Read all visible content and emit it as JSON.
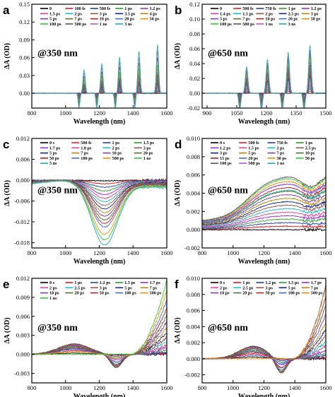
{
  "figure": {
    "ylabel": "ΔA (OD)",
    "xlabel": "Wavelength (nm)"
  },
  "chart_data": [
    {
      "type": "line",
      "panel": "a",
      "annotation": "@350 nm",
      "xlabel": "Wavelength (nm)",
      "ylabel": "ΔA (OD)",
      "xlim": [
        800,
        1600
      ],
      "ylim": [
        -0.025,
        0.15
      ],
      "xticks": [
        800,
        1000,
        1200,
        1400,
        1600
      ],
      "yticks": [
        0.15,
        0.12,
        0.09,
        0.06,
        0.03,
        0.0
      ],
      "ytick_labels": [
        "0.15",
        "0.12",
        "0.09",
        "0.06",
        "0.03",
        "0.00"
      ],
      "legend_placement": "top-right",
      "legend_cols": 5,
      "features": {
        "kind": "peaks",
        "peaks": [
          1110,
          1215,
          1320,
          1435,
          1545
        ],
        "dips": [
          1080,
          1185,
          1295,
          1410
        ]
      },
      "series": [
        {
          "name": "0",
          "color": "#000000",
          "amp": 0.0
        },
        {
          "name": "100 fs",
          "color": "#e41a1c",
          "amp": 0.002
        },
        {
          "name": "500 fs",
          "color": "#1f3fbf",
          "amp": 0.004
        },
        {
          "name": "1 ps",
          "color": "#2ca02c",
          "amp": 0.006
        },
        {
          "name": "1.2 ps",
          "color": "#9b30d9",
          "amp": 0.008
        },
        {
          "name": "1.5 ps",
          "color": "#e0409a",
          "amp": 0.01
        },
        {
          "name": "2 ps",
          "color": "#17becf",
          "amp": 0.012
        },
        {
          "name": "3 ps",
          "color": "#8c564b",
          "amp": 0.014
        },
        {
          "name": "3.5 ps",
          "color": "#1a237e",
          "amp": 0.016
        },
        {
          "name": "4 ps",
          "color": "#b8860b",
          "amp": 0.018
        },
        {
          "name": "5 ps",
          "color": "#7b3fa0",
          "amp": 0.02
        },
        {
          "name": "7 ps",
          "color": "#556b2f",
          "amp": 0.024
        },
        {
          "name": "10 ps",
          "color": "#b22222",
          "amp": 0.028
        },
        {
          "name": "20 ps",
          "color": "#4169e1",
          "amp": 0.032
        },
        {
          "name": "50 ps",
          "color": "#ff8c00",
          "amp": 0.036
        },
        {
          "name": "100 ps",
          "color": "#32cd32",
          "amp": 0.042
        },
        {
          "name": "500 ps",
          "color": "#555555",
          "amp": 0.052
        },
        {
          "name": "1 ns",
          "color": "#ba55d3",
          "amp": 0.062
        },
        {
          "name": "3 ns",
          "color": "#20b2aa",
          "amp": 0.072
        }
      ]
    },
    {
      "type": "line",
      "panel": "b",
      "annotation": "@650 nm",
      "xlabel": "Wavelength (nm)",
      "ylabel": "ΔA (OD)",
      "xlim": [
        875,
        1500
      ],
      "ylim": [
        -0.02,
        0.12
      ],
      "xticks": [
        900,
        1050,
        1200,
        1350,
        1500
      ],
      "yticks": [
        0.12,
        0.1,
        0.08,
        0.06,
        0.04,
        0.02,
        0.0,
        -0.02
      ],
      "ytick_labels": [
        "0.12",
        "0.10",
        "0.08",
        "0.06",
        "0.04",
        "0.02",
        "0.00",
        "-0.02"
      ],
      "legend_placement": "top-right",
      "legend_cols": 5,
      "features": {
        "kind": "peaks",
        "peaks": [
          1100,
          1205,
          1310,
          1420
        ],
        "dips": [
          1065,
          1175,
          1280,
          1390
        ]
      },
      "series": [
        {
          "name": "0",
          "color": "#000000",
          "amp": 0.0
        },
        {
          "name": "500 fs",
          "color": "#e41a1c",
          "amp": 0.003
        },
        {
          "name": "750 fs",
          "color": "#1f3fbf",
          "amp": 0.006
        },
        {
          "name": "1 ps",
          "color": "#2ca02c",
          "amp": 0.009
        },
        {
          "name": "1.2 ps",
          "color": "#9b30d9",
          "amp": 0.012
        },
        {
          "name": "1.4 ps",
          "color": "#e0409a",
          "amp": 0.015
        },
        {
          "name": "1.5 ps",
          "color": "#17becf",
          "amp": 0.018
        },
        {
          "name": "2 ps",
          "color": "#8c564b",
          "amp": 0.021
        },
        {
          "name": "2.5 ps",
          "color": "#1a237e",
          "amp": 0.024
        },
        {
          "name": "3 ps",
          "color": "#b8860b",
          "amp": 0.027
        },
        {
          "name": "5 ps",
          "color": "#7b3fa0",
          "amp": 0.03
        },
        {
          "name": "7 ps",
          "color": "#556b2f",
          "amp": 0.034
        },
        {
          "name": "10 ps",
          "color": "#b22222",
          "amp": 0.038
        },
        {
          "name": "20 ps",
          "color": "#4169e1",
          "amp": 0.042
        },
        {
          "name": "50 ps",
          "color": "#ff8c00",
          "amp": 0.046
        },
        {
          "name": "100 ps",
          "color": "#32cd32",
          "amp": 0.05
        },
        {
          "name": "500 ps",
          "color": "#555555",
          "amp": 0.054
        },
        {
          "name": "1 ns",
          "color": "#ba55d3",
          "amp": 0.058
        },
        {
          "name": "3 ns",
          "color": "#20b2aa",
          "amp": 0.065
        }
      ]
    },
    {
      "type": "line",
      "panel": "c",
      "annotation": "@350 nm",
      "xlabel": "Wavelength (nm)",
      "ylabel": "ΔA (OD)",
      "xlim": [
        800,
        1600
      ],
      "ylim": [
        -0.0195,
        0.012
      ],
      "xticks": [
        800,
        1000,
        1200,
        1400,
        1600
      ],
      "yticks": [
        0.012,
        0.006,
        0.0,
        -0.006,
        -0.012,
        -0.018
      ],
      "ytick_labels": [
        "0.012",
        "0.006",
        "0.000",
        "-0.006",
        "-0.012",
        "-0.018"
      ],
      "legend_placement": "top-right",
      "legend_cols": 4,
      "features": {
        "kind": "dip",
        "center": 1230,
        "width": 110
      },
      "series": [
        {
          "name": "0 s",
          "color": "#000000",
          "amp": -0.0002
        },
        {
          "name": "500 fs",
          "color": "#e41a1c",
          "amp": -0.001
        },
        {
          "name": "1 ps",
          "color": "#1f3fbf",
          "amp": -0.002
        },
        {
          "name": "1.5 ps",
          "color": "#2ca02c",
          "amp": -0.003
        },
        {
          "name": "1.7 ps",
          "color": "#9b30d9",
          "amp": -0.004
        },
        {
          "name": "1.8 ps",
          "color": "#e0409a",
          "amp": -0.005
        },
        {
          "name": "2 ps",
          "color": "#17becf",
          "amp": -0.006
        },
        {
          "name": "3 ps",
          "color": "#8c564b",
          "amp": -0.007
        },
        {
          "name": "5 ps",
          "color": "#1a237e",
          "amp": -0.008
        },
        {
          "name": "7 ps",
          "color": "#b8860b",
          "amp": -0.009
        },
        {
          "name": "10 ps",
          "color": "#7b3fa0",
          "amp": -0.01
        },
        {
          "name": "20 ps",
          "color": "#556b2f",
          "amp": -0.011
        },
        {
          "name": "50 ps",
          "color": "#b22222",
          "amp": -0.012
        },
        {
          "name": "100 ps",
          "color": "#4169e1",
          "amp": -0.013
        },
        {
          "name": "500 ps",
          "color": "#ff8c00",
          "amp": -0.015
        },
        {
          "name": "1 ns",
          "color": "#32cd32",
          "amp": -0.0165
        },
        {
          "name": "5 ns",
          "color": "#20b2aa",
          "amp": -0.018
        }
      ]
    },
    {
      "type": "line",
      "panel": "d",
      "annotation": "@650 nm",
      "xlabel": "Wavelength (nm)",
      "ylabel": "ΔA (OD)",
      "xlim": [
        800,
        1600
      ],
      "ylim": [
        -0.002,
        0.01
      ],
      "xticks": [
        800,
        1000,
        1200,
        1400,
        1600
      ],
      "yticks": [
        0.01,
        0.008,
        0.006,
        0.004,
        0.002,
        0.0,
        -0.002
      ],
      "ytick_labels": [
        "0.010",
        "0.008",
        "0.006",
        "0.004",
        "0.002",
        "0.000",
        "-0.002"
      ],
      "legend_placement": "top-right",
      "legend_cols": 4,
      "features": {
        "kind": "rise",
        "center": 1330
      },
      "series": [
        {
          "name": "0 s",
          "color": "#000000",
          "amp": 0.0
        },
        {
          "name": "500 fs",
          "color": "#e41a1c",
          "amp": 0.0004
        },
        {
          "name": "750 fs",
          "color": "#1f3fbf",
          "amp": 0.0008
        },
        {
          "name": "1 ps",
          "color": "#2ca02c",
          "amp": 0.0012
        },
        {
          "name": "1.2 ps",
          "color": "#9b30d9",
          "amp": 0.0016
        },
        {
          "name": "1.5 ps",
          "color": "#e0409a",
          "amp": 0.002
        },
        {
          "name": "2 ps",
          "color": "#17becf",
          "amp": 0.0024
        },
        {
          "name": "2.5 ps",
          "color": "#8c564b",
          "amp": 0.0028
        },
        {
          "name": "3 ps",
          "color": "#1a237e",
          "amp": 0.0032
        },
        {
          "name": "5 ps",
          "color": "#b8860b",
          "amp": 0.0036
        },
        {
          "name": "7 ps",
          "color": "#7b3fa0",
          "amp": 0.004
        },
        {
          "name": "10 ps",
          "color": "#556b2f",
          "amp": 0.0044
        },
        {
          "name": "15 ps",
          "color": "#b22222",
          "amp": 0.0048
        },
        {
          "name": "20 ps",
          "color": "#4169e1",
          "amp": 0.0052
        },
        {
          "name": "30 ps",
          "color": "#ff8c00",
          "amp": 0.0055
        },
        {
          "name": "50 ps",
          "color": "#32cd32",
          "amp": 0.0058
        },
        {
          "name": "100 ps",
          "color": "#555555",
          "amp": 0.006
        },
        {
          "name": "500 ps",
          "color": "#ba55d3",
          "amp": 0.0052
        },
        {
          "name": "1 ns",
          "color": "#20b2aa",
          "amp": 0.0045
        }
      ]
    },
    {
      "type": "line",
      "panel": "e",
      "annotation": "@350 nm",
      "xlabel": "Wavelength (nm)",
      "ylabel": "ΔA (OD)",
      "xlim": [
        800,
        1600
      ],
      "ylim": [
        -0.0045,
        0.012
      ],
      "xticks": [
        800,
        1000,
        1200,
        1400,
        1600
      ],
      "yticks": [
        0.012,
        0.009,
        0.006,
        0.003,
        0.0,
        -0.003
      ],
      "ytick_labels": [
        "0.012",
        "0.009",
        "0.006",
        "0.003",
        "0.000",
        "-0.003"
      ],
      "legend_placement": "top-center",
      "legend_cols": 5,
      "features": {
        "kind": "hump-dip-rise",
        "hump": 1050,
        "dip": 1300,
        "rise": 1600
      },
      "series": [
        {
          "name": "0 s",
          "color": "#000000",
          "amp": 0.0002
        },
        {
          "name": "1 ps",
          "color": "#e41a1c",
          "amp": 0.0006
        },
        {
          "name": "1.2 ps",
          "color": "#1f3fbf",
          "amp": 0.001
        },
        {
          "name": "1.5 ps",
          "color": "#2ca02c",
          "amp": 0.0014
        },
        {
          "name": "1.7 ps",
          "color": "#9b30d9",
          "amp": 0.0018
        },
        {
          "name": "2 ps",
          "color": "#e0409a",
          "amp": 0.0022
        },
        {
          "name": "2.5 ps",
          "color": "#17becf",
          "amp": 0.0026
        },
        {
          "name": "3 ps",
          "color": "#8c564b",
          "amp": 0.003
        },
        {
          "name": "5 ps",
          "color": "#1a237e",
          "amp": 0.0034
        },
        {
          "name": "7 ps",
          "color": "#b8860b",
          "amp": 0.0038
        },
        {
          "name": "10 ps",
          "color": "#7b3fa0",
          "amp": 0.0042
        },
        {
          "name": "20 ps",
          "color": "#556b2f",
          "amp": 0.0046
        },
        {
          "name": "50 ps",
          "color": "#b22222",
          "amp": 0.005
        },
        {
          "name": "100 ps",
          "color": "#4169e1",
          "amp": 0.0055
        },
        {
          "name": "500 ps",
          "color": "#ff8c00",
          "amp": 0.006
        },
        {
          "name": "1 ns",
          "color": "#32cd32",
          "amp": 0.0065
        }
      ]
    },
    {
      "type": "line",
      "panel": "f",
      "annotation": "@650 nm",
      "xlabel": "Wavelength (nm)",
      "ylabel": "ΔA (OD)",
      "xlim": [
        800,
        1600
      ],
      "ylim": [
        -0.003,
        0.01
      ],
      "xticks": [
        800,
        1000,
        1200,
        1400,
        1600
      ],
      "yticks": [
        0.01,
        0.008,
        0.006,
        0.004,
        0.002,
        0.0,
        -0.002
      ],
      "ytick_labels": [
        "0.010",
        "0.008",
        "0.006",
        "0.004",
        "0.002",
        "0.000",
        "-0.002"
      ],
      "legend_placement": "top-right",
      "legend_cols": 5,
      "features": {
        "kind": "hump-dip-rise",
        "hump": 1130,
        "dip": 1310,
        "rise": 1600
      },
      "series": [
        {
          "name": "0 s",
          "color": "#000000",
          "amp": 0.0002
        },
        {
          "name": "1 ps",
          "color": "#e41a1c",
          "amp": 0.0006
        },
        {
          "name": "1.2 ps",
          "color": "#1f3fbf",
          "amp": 0.001
        },
        {
          "name": "1.5 ps",
          "color": "#2ca02c",
          "amp": 0.0014
        },
        {
          "name": "1.7 ps",
          "color": "#9b30d9",
          "amp": 0.0018
        },
        {
          "name": "2 ps",
          "color": "#e0409a",
          "amp": 0.0022
        },
        {
          "name": "2.5 ps",
          "color": "#17becf",
          "amp": 0.0026
        },
        {
          "name": "3 ps",
          "color": "#8c564b",
          "amp": 0.003
        },
        {
          "name": "5 ps",
          "color": "#1a237e",
          "amp": 0.0034
        },
        {
          "name": "7 ps",
          "color": "#b8860b",
          "amp": 0.0038
        },
        {
          "name": "10 ps",
          "color": "#7b3fa0",
          "amp": 0.0042
        },
        {
          "name": "20 ps",
          "color": "#556b2f",
          "amp": 0.0046
        },
        {
          "name": "50 ps",
          "color": "#b22222",
          "amp": 0.005
        },
        {
          "name": "100 ps",
          "color": "#4169e1",
          "amp": 0.0055
        },
        {
          "name": "500 ps",
          "color": "#ff8c00",
          "amp": 0.005
        }
      ]
    }
  ]
}
